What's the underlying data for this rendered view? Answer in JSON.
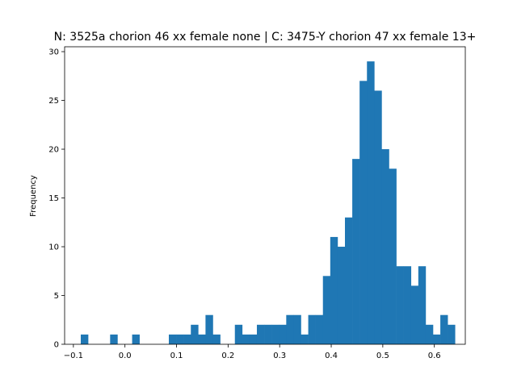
{
  "chart_data": {
    "type": "bar",
    "title": "N: 3525a chorion 46 xx female none | C: 3475-Y chorion 47 xx female 13+",
    "xlabel": "",
    "ylabel": "Frequency",
    "xlim": [
      -0.117,
      0.66
    ],
    "ylim": [
      0,
      30.5
    ],
    "xticks": [
      -0.1,
      0.0,
      0.1,
      0.2,
      0.3,
      0.4,
      0.5,
      0.6
    ],
    "xtick_labels": [
      "−0.1",
      "0.0",
      "0.1",
      "0.2",
      "0.3",
      "0.4",
      "0.5",
      "0.6"
    ],
    "yticks": [
      0,
      5,
      10,
      15,
      20,
      25,
      30
    ],
    "ytick_labels": [
      "0",
      "5",
      "10",
      "15",
      "20",
      "25",
      "30"
    ],
    "bin_start": -0.0857,
    "bin_width": 0.01423,
    "values": [
      1,
      0,
      0,
      0,
      1,
      0,
      0,
      1,
      0,
      0,
      0,
      0,
      1,
      1,
      1,
      2,
      1,
      3,
      1,
      0,
      0,
      2,
      1,
      1,
      2,
      2,
      2,
      2,
      3,
      3,
      1,
      3,
      3,
      7,
      11,
      10,
      13,
      19,
      27,
      29,
      26,
      20,
      18,
      8,
      8,
      6,
      8,
      2,
      1,
      3,
      2
    ],
    "color": "#1f77b4",
    "grid": false
  }
}
